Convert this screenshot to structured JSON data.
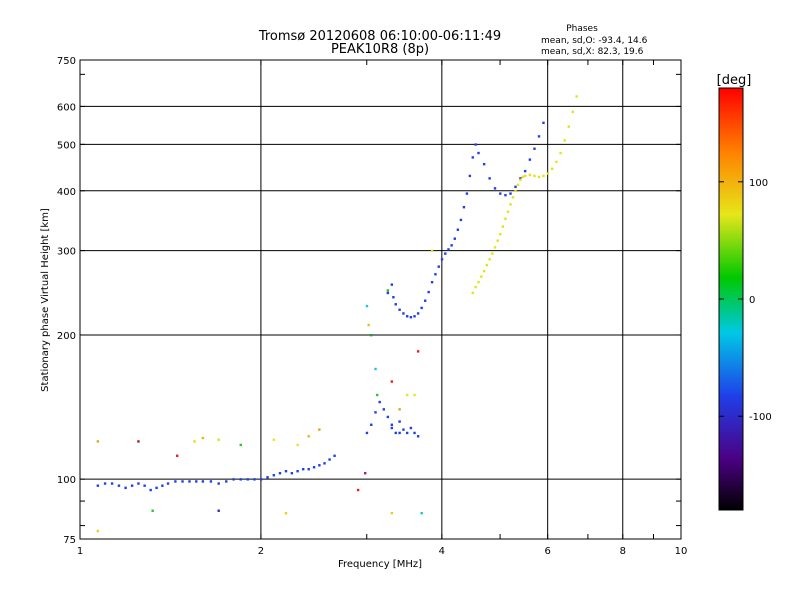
{
  "chart_data": {
    "type": "scatter",
    "title": "Tromsø 20120608 06:10:00-06:11:49",
    "subtitle": "PEAK10R8 (8p)",
    "phase_block": {
      "heading": "Phases",
      "line_o": "mean, sd,O:  -93.4, 14.6",
      "line_x": "mean, sd,X:  82.3, 19.6"
    },
    "xlabel": "Frequency [MHz]",
    "ylabel": "Stationary phase Virtual Height [km]",
    "x_scale": "log",
    "y_scale": "log",
    "xlim": [
      1,
      10
    ],
    "ylim": [
      75,
      750
    ],
    "x_tick_values": [
      1,
      2,
      4,
      6,
      8,
      10
    ],
    "x_tick_labels": [
      "1",
      "2",
      "4",
      "6",
      "8",
      "10"
    ],
    "y_tick_values": [
      75,
      100,
      200,
      300,
      400,
      500,
      600,
      750
    ],
    "y_tick_labels": [
      "75",
      "100",
      "200",
      "300",
      "400",
      "500",
      "600",
      "750"
    ],
    "grid": true,
    "colorbar": {
      "label": "[deg]",
      "range": [
        -180,
        180
      ],
      "tick_values": [
        100,
        0,
        -100
      ],
      "tick_labels": [
        "100",
        "0",
        "-100"
      ]
    },
    "series": [
      {
        "name": "O",
        "color": "#1f3fe8",
        "points": [
          [
            1.07,
            97
          ],
          [
            1.1,
            98
          ],
          [
            1.13,
            98
          ],
          [
            1.16,
            97
          ],
          [
            1.19,
            96
          ],
          [
            1.22,
            97
          ],
          [
            1.25,
            98
          ],
          [
            1.28,
            97
          ],
          [
            1.31,
            95
          ],
          [
            1.34,
            96
          ],
          [
            1.37,
            97
          ],
          [
            1.4,
            98
          ],
          [
            1.44,
            99
          ],
          [
            1.48,
            99
          ],
          [
            1.52,
            99
          ],
          [
            1.56,
            99
          ],
          [
            1.6,
            99
          ],
          [
            1.65,
            99
          ],
          [
            1.7,
            98
          ],
          [
            1.75,
            99
          ],
          [
            1.8,
            100
          ],
          [
            1.85,
            100
          ],
          [
            1.9,
            100
          ],
          [
            1.95,
            100
          ],
          [
            2.0,
            100
          ],
          [
            2.05,
            101
          ],
          [
            2.1,
            102
          ],
          [
            2.15,
            103
          ],
          [
            2.2,
            104
          ],
          [
            2.25,
            103
          ],
          [
            2.3,
            104
          ],
          [
            2.35,
            105
          ],
          [
            2.4,
            105
          ],
          [
            2.45,
            106
          ],
          [
            2.5,
            107
          ],
          [
            2.55,
            108
          ],
          [
            2.6,
            110
          ],
          [
            2.65,
            112
          ],
          [
            3.0,
            125
          ],
          [
            3.05,
            130
          ],
          [
            3.1,
            138
          ],
          [
            3.15,
            145
          ],
          [
            3.2,
            140
          ],
          [
            3.25,
            135
          ],
          [
            3.3,
            128
          ],
          [
            3.35,
            125
          ],
          [
            3.4,
            125
          ],
          [
            3.45,
            127
          ],
          [
            3.5,
            125
          ],
          [
            3.55,
            128
          ],
          [
            3.6,
            125
          ],
          [
            3.65,
            123
          ],
          [
            3.3,
            130
          ],
          [
            3.4,
            132
          ],
          [
            3.25,
            245
          ],
          [
            3.3,
            255
          ],
          [
            3.32,
            240
          ],
          [
            3.35,
            232
          ],
          [
            3.4,
            226
          ],
          [
            3.45,
            222
          ],
          [
            3.5,
            219
          ],
          [
            3.55,
            218
          ],
          [
            3.6,
            219
          ],
          [
            3.65,
            222
          ],
          [
            3.7,
            228
          ],
          [
            3.75,
            236
          ],
          [
            3.8,
            246
          ],
          [
            3.85,
            258
          ],
          [
            3.9,
            268
          ],
          [
            3.95,
            278
          ],
          [
            4.0,
            288
          ],
          [
            4.05,
            296
          ],
          [
            4.1,
            302
          ],
          [
            4.15,
            308
          ],
          [
            4.2,
            318
          ],
          [
            4.25,
            332
          ],
          [
            4.3,
            348
          ],
          [
            4.35,
            370
          ],
          [
            4.4,
            395
          ],
          [
            4.45,
            430
          ],
          [
            4.5,
            470
          ],
          [
            4.55,
            500
          ],
          [
            4.6,
            480
          ],
          [
            4.7,
            455
          ],
          [
            4.8,
            425
          ],
          [
            4.9,
            405
          ],
          [
            5.0,
            395
          ],
          [
            5.1,
            392
          ],
          [
            5.2,
            395
          ],
          [
            5.3,
            408
          ],
          [
            5.4,
            425
          ],
          [
            5.5,
            440
          ],
          [
            5.6,
            465
          ],
          [
            5.7,
            490
          ],
          [
            5.8,
            520
          ],
          [
            5.9,
            555
          ]
        ]
      },
      {
        "name": "X",
        "color": "#e2e21a",
        "points": [
          [
            4.5,
            245
          ],
          [
            4.55,
            252
          ],
          [
            4.6,
            258
          ],
          [
            4.65,
            265
          ],
          [
            4.7,
            272
          ],
          [
            4.75,
            280
          ],
          [
            4.8,
            288
          ],
          [
            4.85,
            296
          ],
          [
            4.9,
            305
          ],
          [
            4.95,
            315
          ],
          [
            5.0,
            325
          ],
          [
            5.05,
            337
          ],
          [
            5.1,
            350
          ],
          [
            5.15,
            362
          ],
          [
            5.2,
            375
          ],
          [
            5.25,
            388
          ],
          [
            5.3,
            400
          ],
          [
            5.35,
            412
          ],
          [
            5.4,
            422
          ],
          [
            5.45,
            428
          ],
          [
            5.5,
            430
          ],
          [
            5.6,
            432
          ],
          [
            5.7,
            430
          ],
          [
            5.8,
            428
          ],
          [
            5.9,
            430
          ],
          [
            6.0,
            435
          ],
          [
            6.1,
            445
          ],
          [
            6.2,
            460
          ],
          [
            6.3,
            480
          ],
          [
            6.4,
            510
          ],
          [
            6.5,
            545
          ],
          [
            6.6,
            585
          ],
          [
            6.7,
            630
          ]
        ]
      },
      {
        "name": "scattered",
        "points": [
          [
            1.07,
            120,
            "#e2a21a"
          ],
          [
            1.25,
            120,
            "#b21a1a"
          ],
          [
            1.45,
            112,
            "#e22020"
          ],
          [
            1.55,
            120,
            "#e6d81a"
          ],
          [
            1.6,
            122,
            "#e6b81a"
          ],
          [
            1.7,
            121,
            "#d8e01a"
          ],
          [
            1.85,
            118,
            "#28c828"
          ],
          [
            2.1,
            121,
            "#e6e61a"
          ],
          [
            2.2,
            85,
            "#e6d01a"
          ],
          [
            2.3,
            118,
            "#e6e61a"
          ],
          [
            2.4,
            123,
            "#e6b81a"
          ],
          [
            2.5,
            127,
            "#e6a01a"
          ],
          [
            2.9,
            95,
            "#e22020"
          ],
          [
            2.98,
            103,
            "#b21a8a"
          ],
          [
            3.0,
            230,
            "#1ac8e6"
          ],
          [
            3.02,
            210,
            "#e2c21a"
          ],
          [
            3.05,
            200,
            "#1a9f3a"
          ],
          [
            3.1,
            170,
            "#1ac8e6"
          ],
          [
            3.12,
            150,
            "#28c828"
          ],
          [
            3.3,
            160,
            "#e22020"
          ],
          [
            3.25,
            248,
            "#28c828"
          ],
          [
            3.3,
            85,
            "#e6d01a"
          ],
          [
            3.4,
            140,
            "#e2a21a"
          ],
          [
            3.5,
            150,
            "#e6e61a"
          ],
          [
            3.6,
            150,
            "#e6e61a"
          ],
          [
            3.65,
            185,
            "#e22020"
          ],
          [
            3.7,
            85,
            "#1ac8c8"
          ],
          [
            3.85,
            300,
            "#e6e61a"
          ],
          [
            1.07,
            78,
            "#e6d01a"
          ],
          [
            1.32,
            86,
            "#28c828"
          ],
          [
            1.7,
            86,
            "#2a2ab8"
          ]
        ]
      }
    ]
  }
}
